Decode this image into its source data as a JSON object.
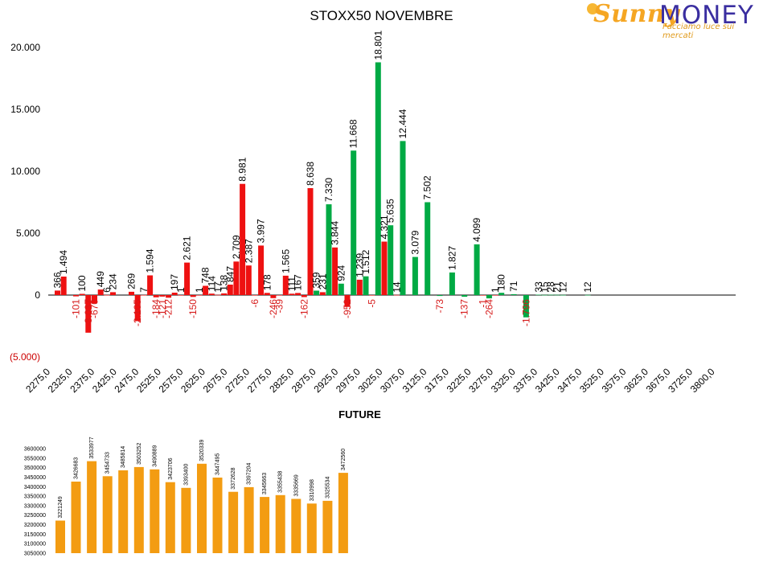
{
  "title": "STOXX50 NOVEMBRE",
  "future_title": "FUTURE",
  "logo": {
    "word_a": "Sunny",
    "word_b": "MONEY",
    "tagline": "Facciamo luce sui mercati"
  },
  "colors": {
    "red": "#ee1111",
    "green": "#00aa44",
    "orange": "#f39c12",
    "neg_label": "#d61a1a"
  },
  "chart_data": [
    {
      "type": "bar",
      "title": "STOXX50 NOVEMBRE",
      "ylim": [
        -5000,
        20000
      ],
      "yticks": [
        {
          "v": 20000,
          "label": "20.000"
        },
        {
          "v": 15000,
          "label": "15.000"
        },
        {
          "v": 10000,
          "label": "10.000"
        },
        {
          "v": 5000,
          "label": "5.000"
        },
        {
          "v": 0,
          "label": "0"
        },
        {
          "v": -5000,
          "label": "(5.000)"
        }
      ],
      "xtick_labels": [
        "2275,0",
        "2325,0",
        "2375,0",
        "2425,0",
        "2475,0",
        "2525,0",
        "2575,0",
        "2625,0",
        "2675,0",
        "2725,0",
        "2775,0",
        "2825,0",
        "2875,0",
        "2925,0",
        "2975,0",
        "3025,0",
        "3075,0",
        "3125,0",
        "3175,0",
        "3225,0",
        "3275,0",
        "3325,0",
        "3375,0",
        "3425,0",
        "3475,0",
        "3525,0",
        "3575,0",
        "3625,0",
        "3675,0",
        "3725,0",
        "3800,0"
      ],
      "grid": false,
      "bars": [
        {
          "slot": 0,
          "s": "red",
          "v": 366,
          "label": "366"
        },
        {
          "slot": 1,
          "s": "red",
          "v": 1494,
          "label": "1.494"
        },
        {
          "slot": 3,
          "s": "red",
          "v": -101,
          "label": "-101"
        },
        {
          "slot": 4,
          "s": "red",
          "v": 100,
          "label": "100"
        },
        {
          "slot": 5,
          "s": "red",
          "v": -3037,
          "label": "-3.037"
        },
        {
          "slot": 6,
          "s": "red",
          "v": -670,
          "label": "-670"
        },
        {
          "slot": 7,
          "s": "red",
          "v": 449,
          "label": "449"
        },
        {
          "slot": 8,
          "s": "red",
          "v": 6,
          "label": "6"
        },
        {
          "slot": 9,
          "s": "red",
          "v": 234,
          "label": "234"
        },
        {
          "slot": 12,
          "s": "red",
          "v": 269,
          "label": "269"
        },
        {
          "slot": 13,
          "s": "red",
          "v": -2105,
          "label": "-2.105"
        },
        {
          "slot": 14,
          "s": "red",
          "v": 7,
          "label": "7"
        },
        {
          "slot": 15,
          "s": "red",
          "v": 1594,
          "label": "1.594"
        },
        {
          "slot": 16,
          "s": "red",
          "v": -184,
          "label": "-184"
        },
        {
          "slot": 17,
          "s": "red",
          "v": -121,
          "label": "-121"
        },
        {
          "slot": 18,
          "s": "red",
          "v": -212,
          "label": "-212"
        },
        {
          "slot": 19,
          "s": "red",
          "v": 197,
          "label": "197"
        },
        {
          "slot": 20,
          "s": "red",
          "v": 1,
          "label": "1"
        },
        {
          "slot": 21,
          "s": "red",
          "v": 2621,
          "label": "2.621"
        },
        {
          "slot": 22,
          "s": "red",
          "v": -150,
          "label": "-150"
        },
        {
          "slot": 23,
          "s": "red",
          "v": 1,
          "label": "1"
        },
        {
          "slot": 24,
          "s": "red",
          "v": 748,
          "label": "748"
        },
        {
          "slot": 25,
          "s": "red",
          "v": 114,
          "label": "114"
        },
        {
          "slot": 26,
          "s": "red",
          "v": 17,
          "label": "17"
        },
        {
          "slot": 27,
          "s": "red",
          "v": 138,
          "label": "138"
        },
        {
          "slot": 28,
          "s": "red",
          "v": 847,
          "label": "847"
        },
        {
          "slot": 29,
          "s": "red",
          "v": 2709,
          "label": "2.709"
        },
        {
          "slot": 30,
          "s": "red",
          "v": 8981,
          "label": "8.981"
        },
        {
          "slot": 31,
          "s": "red",
          "v": 2387,
          "label": "2.387"
        },
        {
          "slot": 32,
          "s": "red",
          "v": -6,
          "label": "-6"
        },
        {
          "slot": 33,
          "s": "red",
          "v": 3997,
          "label": "3.997"
        },
        {
          "slot": 34,
          "s": "red",
          "v": 178,
          "label": "178"
        },
        {
          "slot": 35,
          "s": "red",
          "v": -246,
          "label": "-246"
        },
        {
          "slot": 36,
          "s": "red",
          "v": -39,
          "label": "-39"
        },
        {
          "slot": 37,
          "s": "red",
          "v": 1565,
          "label": "1.565"
        },
        {
          "slot": 38,
          "s": "red",
          "v": 111,
          "label": "111"
        },
        {
          "slot": 39,
          "s": "red",
          "v": 167,
          "label": "167"
        },
        {
          "slot": 40,
          "s": "red",
          "v": -162,
          "label": "-162"
        },
        {
          "slot": 41,
          "s": "red",
          "v": 8638,
          "label": "8.638"
        },
        {
          "slot": 42,
          "s": "green",
          "v": 359,
          "label": "359"
        },
        {
          "slot": 43,
          "s": "red",
          "v": 231,
          "label": "231"
        },
        {
          "slot": 44,
          "s": "green",
          "v": 7330,
          "label": "7.330"
        },
        {
          "slot": 45,
          "s": "red",
          "v": 3844,
          "label": "3.844"
        },
        {
          "slot": 46,
          "s": "green",
          "v": 924,
          "label": "924"
        },
        {
          "slot": 47,
          "s": "red",
          "v": -952,
          "label": "-952"
        },
        {
          "slot": 48,
          "s": "green",
          "v": 11668,
          "label": "11.668"
        },
        {
          "slot": 49,
          "s": "red",
          "v": 1239,
          "label": "1.239"
        },
        {
          "slot": 50,
          "s": "green",
          "v": 1512,
          "label": "1.512"
        },
        {
          "slot": 51,
          "s": "red",
          "v": -5,
          "label": "-5"
        },
        {
          "slot": 52,
          "s": "green",
          "v": 18801,
          "label": "18.801"
        },
        {
          "slot": 53,
          "s": "red",
          "v": 4321,
          "label": "4.321"
        },
        {
          "slot": 54,
          "s": "green",
          "v": 5635,
          "label": "5.635"
        },
        {
          "slot": 55,
          "s": "red",
          "v": 14,
          "label": "14"
        },
        {
          "slot": 56,
          "s": "green",
          "v": 12444,
          "label": "12.444"
        },
        {
          "slot": 58,
          "s": "green",
          "v": 3079,
          "label": "3.079"
        },
        {
          "slot": 60,
          "s": "green",
          "v": 7502,
          "label": "7.502"
        },
        {
          "slot": 62,
          "s": "green",
          "v": -73,
          "label": "-73"
        },
        {
          "slot": 64,
          "s": "green",
          "v": 1827,
          "label": "1.827"
        },
        {
          "slot": 66,
          "s": "green",
          "v": -137,
          "label": "-137"
        },
        {
          "slot": 68,
          "s": "green",
          "v": 4099,
          "label": "4.099"
        },
        {
          "slot": 69,
          "s": "red",
          "v": -1,
          "label": "-1"
        },
        {
          "slot": 70,
          "s": "green",
          "v": -264,
          "label": "-264"
        },
        {
          "slot": 71,
          "s": "red",
          "v": 1,
          "label": "1"
        },
        {
          "slot": 72,
          "s": "green",
          "v": 180,
          "label": "180"
        },
        {
          "slot": 74,
          "s": "green",
          "v": 71,
          "label": "71"
        },
        {
          "slot": 76,
          "s": "green",
          "v": -1796,
          "label": "-1.796"
        },
        {
          "slot": 78,
          "s": "green",
          "v": 33,
          "label": "33"
        },
        {
          "slot": 79,
          "s": "green",
          "v": 15,
          "label": "15"
        },
        {
          "slot": 80,
          "s": "green",
          "v": 28,
          "label": "28"
        },
        {
          "slot": 81,
          "s": "green",
          "v": 21,
          "label": "21"
        },
        {
          "slot": 82,
          "s": "green",
          "v": 12,
          "label": "12"
        },
        {
          "slot": 86,
          "s": "green",
          "v": 12,
          "label": "12"
        }
      ]
    },
    {
      "type": "bar",
      "title": "FUTURE",
      "ylim": [
        3050000,
        3600000
      ],
      "yticks": [
        "3600000",
        "3550000",
        "3500000",
        "3450000",
        "3400000",
        "3350000",
        "3300000",
        "3250000",
        "3200000",
        "3150000",
        "3100000",
        "3050000"
      ],
      "values": [
        3221249,
        3426683,
        3533977,
        3454733,
        3485814,
        3503252,
        3490889,
        3423706,
        3393400,
        3520339,
        3447495,
        3372628,
        3397204,
        3345663,
        3355438,
        3335669,
        3310998,
        3325534,
        3472560
      ],
      "labels": [
        "3221249",
        "3426683",
        "3533977",
        "3454733",
        "3485814",
        "3503252",
        "3490889",
        "3423706",
        "3393400",
        "3520339",
        "3447495",
        "3372628",
        "3397204",
        "3345663",
        "3355438",
        "3335669",
        "3310998",
        "3325534",
        "3472560"
      ]
    }
  ]
}
